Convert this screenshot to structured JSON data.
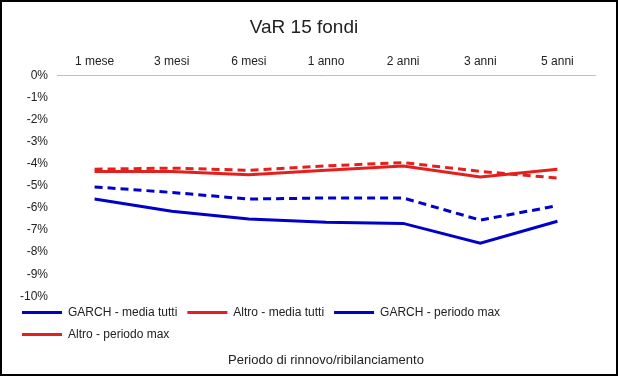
{
  "chart_data": {
    "type": "line",
    "title": "VaR 15 fondi",
    "x_label": "Periodo di rinnovo/ribilanciamento",
    "categories": [
      "1 mese",
      "3 mesi",
      "6 mesi",
      "1 anno",
      "2 anni",
      "3 anni",
      "5 anni"
    ],
    "series": [
      {
        "name": "GARCH - media tutti",
        "color": "#0000c8",
        "line_style": "dashed",
        "values": [
          -5.05,
          -5.3,
          -5.6,
          -5.55,
          -5.55,
          -6.55,
          -5.9
        ]
      },
      {
        "name": "Altro - media tutti",
        "color": "#e3201e",
        "line_style": "dashed",
        "values": [
          -4.25,
          -4.2,
          -4.3,
          -4.1,
          -3.95,
          -4.35,
          -4.65
        ]
      },
      {
        "name": "GARCH - periodo max",
        "color": "#0000c8",
        "line_style": "solid",
        "values": [
          -5.6,
          -6.15,
          -6.5,
          -6.65,
          -6.7,
          -7.6,
          -6.6
        ]
      },
      {
        "name": "Altro - periodo max",
        "color": "#e3201e",
        "line_style": "solid",
        "values": [
          -4.35,
          -4.35,
          -4.5,
          -4.3,
          -4.1,
          -4.6,
          -4.25
        ]
      }
    ],
    "ylim": [
      -10,
      0
    ],
    "yticks": [
      {
        "value": 0,
        "label": "0%"
      },
      {
        "value": -1,
        "label": "-1%"
      },
      {
        "value": -2,
        "label": "-2%"
      },
      {
        "value": -3,
        "label": "-3%"
      },
      {
        "value": -4,
        "label": "-4%"
      },
      {
        "value": -5,
        "label": "-5%"
      },
      {
        "value": -6,
        "label": "-6%"
      },
      {
        "value": -7,
        "label": "-7%"
      },
      {
        "value": -8,
        "label": "-8%"
      },
      {
        "value": -9,
        "label": "-9%"
      },
      {
        "value": -10,
        "label": "-10%"
      }
    ],
    "grid": false,
    "legend": "bottom"
  }
}
